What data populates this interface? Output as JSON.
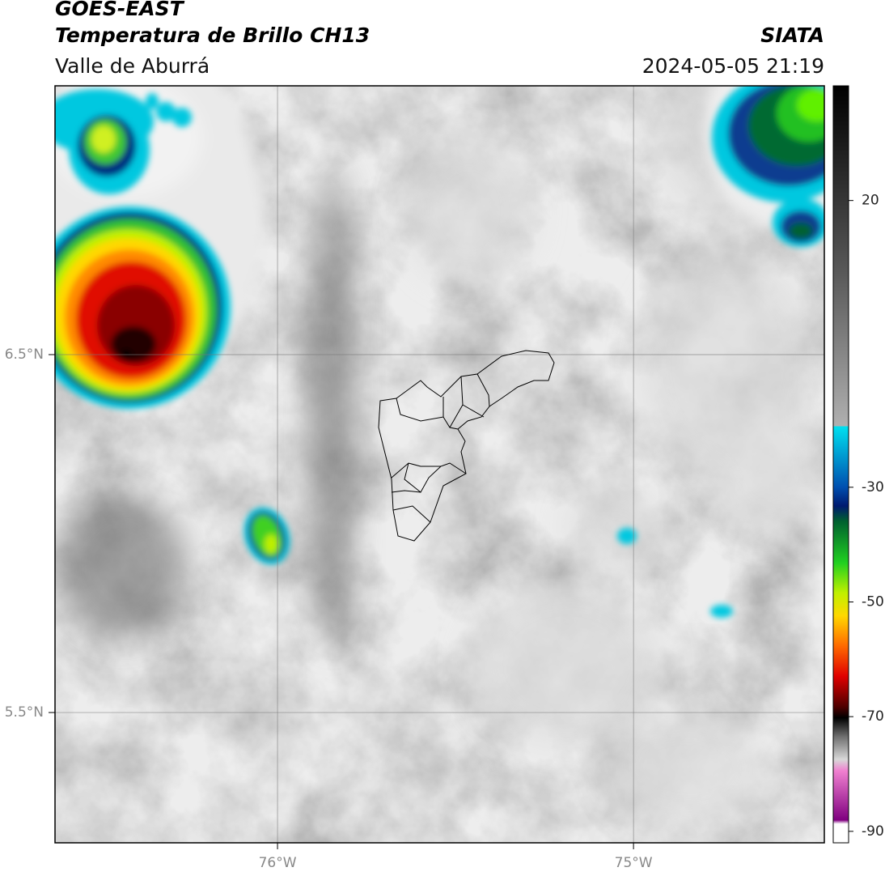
{
  "header": {
    "title": "GOES-EAST",
    "subtitle": "Temperatura de Brillo CH13",
    "region": "Valle de Aburrá",
    "source": "SIATA",
    "datetime": "2024-05-05 21:19"
  },
  "map": {
    "lonlim": [
      -76.625,
      -74.464
    ],
    "latlim": [
      5.136,
      7.251
    ],
    "lon_ticks": [
      {
        "value": -76,
        "label": "76°W"
      },
      {
        "value": -75,
        "label": "75°W"
      }
    ],
    "lat_ticks": [
      {
        "value": 6.5,
        "label": "6.5°N"
      },
      {
        "value": 5.5,
        "label": "5.5°N"
      }
    ]
  },
  "colorbar": {
    "lim": [
      -92,
      40
    ],
    "ticks": [
      20,
      -30,
      -50,
      -70,
      -90
    ]
  }
}
